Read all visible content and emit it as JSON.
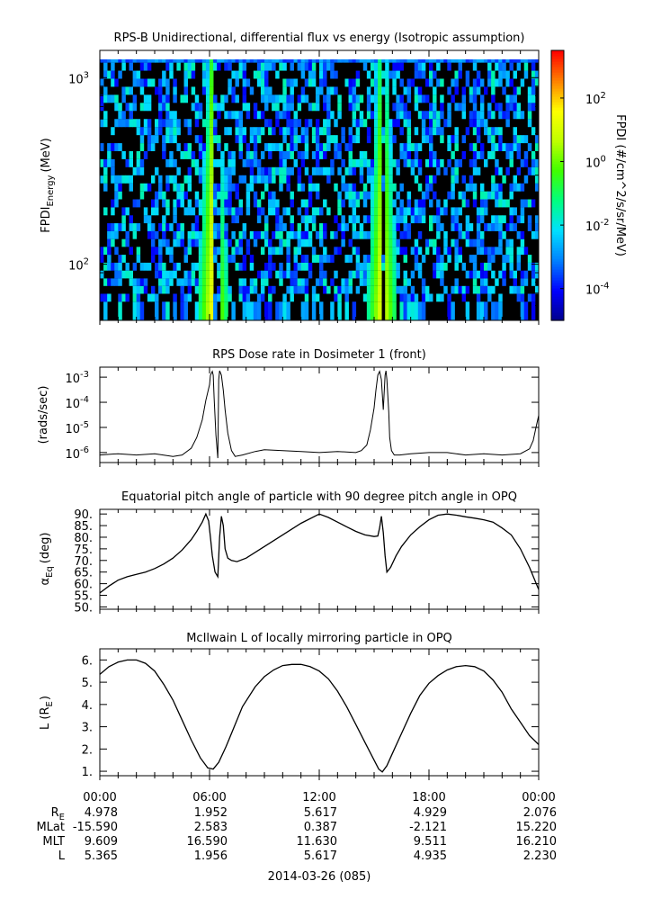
{
  "chart_data": [
    {
      "type": "heatmap",
      "title": "RPS-B  Unidirectional, differential flux vs energy (Isotropic assumption)",
      "ylabel": "FPDI",
      "ylabel_sub": "Energy",
      "ylabel_unit": "(MeV)",
      "yscale": "log",
      "ylim": [
        50,
        1400
      ],
      "yticks": [
        {
          "base": "10",
          "exp": "2",
          "value": 100
        },
        {
          "base": "10",
          "exp": "3",
          "value": 1000
        }
      ],
      "energy_bins_mev": [
        60,
        66,
        73,
        80,
        88,
        97,
        107,
        118,
        130,
        143,
        158,
        174,
        192,
        212,
        234,
        258,
        285,
        315,
        348,
        384,
        424,
        468,
        517,
        571,
        631,
        697,
        770,
        850,
        939,
        1037,
        1145,
        1265
      ],
      "flux_peaks": [
        {
          "center_hour": 6.2,
          "peak_log_flux": 1.6,
          "width_low_energy_h": 0.85,
          "width_high_energy_h": 0.3,
          "gap_hours": [
            6.12,
            6.55
          ]
        },
        {
          "center_hour": 15.45,
          "peak_log_flux": 1.5,
          "width_low_energy_h": 0.85,
          "width_high_energy_h": 0.3,
          "gap_hours": [
            15.33,
            15.6
          ]
        }
      ],
      "background_log_flux": [
        -4.2,
        -1.5
      ],
      "colorbar": {
        "label": "FPDI (#/cm^2/s/sr/MeV)",
        "log_range": [
          -5,
          3.5
        ],
        "ticks": [
          {
            "base": "10",
            "exp": "2",
            "value": 2
          },
          {
            "base": "10",
            "exp": "0",
            "value": 0
          },
          {
            "base": "10",
            "exp": "-2",
            "value": -2
          },
          {
            "base": "10",
            "exp": "-4",
            "value": -4
          }
        ],
        "colors": [
          "#00008b",
          "#0000ff",
          "#0080ff",
          "#00e0ff",
          "#00ff80",
          "#40ff00",
          "#c0ff00",
          "#ffff00",
          "#ff8000",
          "#ff0000"
        ]
      }
    },
    {
      "type": "line",
      "title": "RPS  Dose rate in Dosimeter 1 (front)",
      "ylabel": "(rads/sec)",
      "yscale": "log",
      "ylim": [
        4e-07,
        0.0025
      ],
      "yticks": [
        {
          "base": "10",
          "exp": "-3",
          "value": 0.001
        },
        {
          "base": "10",
          "exp": "-4",
          "value": 0.0001
        },
        {
          "base": "10",
          "exp": "-5",
          "value": 1e-05
        },
        {
          "base": "10",
          "exp": "-6",
          "value": 1e-06
        }
      ],
      "x_hours": [
        0,
        1,
        2,
        3,
        4,
        4.5,
        5.0,
        5.3,
        5.6,
        5.8,
        6.0,
        6.05,
        6.15,
        6.2,
        6.25,
        6.35,
        6.45,
        6.5,
        6.55,
        6.65,
        6.75,
        6.85,
        7.0,
        7.2,
        7.4,
        7.8,
        8.5,
        9,
        10,
        11,
        12,
        13,
        14,
        14.3,
        14.6,
        14.8,
        15.0,
        15.1,
        15.2,
        15.3,
        15.4,
        15.5,
        15.6,
        15.65,
        15.7,
        15.8,
        15.85,
        15.95,
        16.1,
        16.4,
        17,
        18,
        19,
        20,
        21,
        22,
        23,
        23.5,
        23.7,
        23.85,
        24
      ],
      "values": [
        8e-07,
        9e-07,
        8e-07,
        9e-07,
        7e-07,
        8e-07,
        1.5e-06,
        4e-06,
        2e-05,
        0.00012,
        0.0005,
        0.0012,
        0.0017,
        0.0012,
        0.00015,
        5e-06,
        6e-07,
        0.0008,
        0.0018,
        0.0012,
        0.0003,
        5e-05,
        6e-06,
        1.2e-06,
        7e-07,
        8e-07,
        1.1e-06,
        1.3e-06,
        1.2e-06,
        1.1e-06,
        1e-06,
        1.1e-06,
        1e-06,
        1.2e-06,
        2e-06,
        8e-06,
        6e-05,
        0.0003,
        0.0012,
        0.0017,
        0.0008,
        5e-05,
        0.0012,
        0.0018,
        0.0008,
        4e-05,
        4e-06,
        1.2e-06,
        8e-07,
        8e-07,
        9e-07,
        1e-06,
        1e-06,
        8e-07,
        9e-07,
        8e-07,
        9e-07,
        1.4e-06,
        3e-06,
        1e-05,
        3e-05
      ]
    },
    {
      "type": "line",
      "title": "Equatorial pitch angle of particle with 90 degree pitch angle in OPQ",
      "ylabel": "α",
      "ylabel_sub": "Eq",
      "ylabel_unit": "(deg)",
      "ylim": [
        49,
        92
      ],
      "yticks": [
        "50.",
        "55.",
        "60.",
        "65.",
        "70.",
        "75.",
        "80.",
        "85.",
        "90."
      ],
      "ytick_values": [
        50,
        55,
        60,
        65,
        70,
        75,
        80,
        85,
        90
      ],
      "x_hours": [
        0,
        0.5,
        1,
        1.5,
        2,
        2.5,
        3,
        3.5,
        4,
        4.5,
        5,
        5.3,
        5.6,
        5.8,
        5.95,
        6.05,
        6.15,
        6.3,
        6.45,
        6.55,
        6.65,
        6.75,
        6.85,
        7.0,
        7.2,
        7.5,
        8,
        9,
        10,
        11,
        12,
        12.5,
        13,
        13.5,
        14,
        14.5,
        15,
        15.2,
        15.3,
        15.4,
        15.5,
        15.6,
        15.7,
        15.9,
        16.2,
        16.5,
        17,
        17.5,
        18,
        18.5,
        19,
        19.5,
        20,
        20.5,
        21,
        21.5,
        22,
        22.5,
        23,
        23.5,
        24
      ],
      "values": [
        56,
        59,
        61.5,
        63,
        64,
        65,
        66.5,
        68.5,
        71,
        74.5,
        79,
        82.5,
        86.5,
        90,
        87,
        80,
        72,
        65,
        63,
        80,
        89,
        85,
        75,
        71,
        70,
        69.5,
        71,
        76,
        81,
        86,
        90,
        88.5,
        86.5,
        84.5,
        82.5,
        81,
        80.3,
        80.5,
        84,
        89,
        82,
        72,
        65,
        67,
        72,
        76,
        81,
        84.5,
        87.5,
        89.5,
        90,
        89.5,
        88.8,
        88.2,
        87.5,
        86.5,
        84,
        81,
        75,
        67,
        57.5
      ]
    },
    {
      "type": "line",
      "title": "McIlwain L of locally mirroring particle in OPQ",
      "ylabel": "L (R",
      "ylabel_sub": "E",
      "ylabel_unit": ")",
      "ylim": [
        0.8,
        6.5
      ],
      "yticks": [
        "1.",
        "2.",
        "3.",
        "4.",
        "5.",
        "6."
      ],
      "ytick_values": [
        1,
        2,
        3,
        4,
        5,
        6
      ],
      "x_hours": [
        0,
        0.5,
        1,
        1.5,
        2,
        2.5,
        3,
        3.5,
        4,
        4.5,
        5,
        5.5,
        5.9,
        6.2,
        6.5,
        6.9,
        7.3,
        7.8,
        8.5,
        9,
        9.5,
        10,
        10.5,
        11,
        11.5,
        12,
        12.5,
        13,
        13.5,
        14,
        14.5,
        15,
        15.25,
        15.45,
        15.7,
        16,
        16.5,
        17,
        17.5,
        18,
        18.5,
        19,
        19.5,
        20,
        20.5,
        21,
        21.5,
        22,
        22.5,
        23,
        23.5,
        24
      ],
      "values": [
        5.35,
        5.7,
        5.9,
        6.0,
        6.0,
        5.85,
        5.5,
        4.9,
        4.2,
        3.3,
        2.4,
        1.6,
        1.15,
        1.1,
        1.4,
        2.1,
        2.9,
        3.9,
        4.8,
        5.25,
        5.55,
        5.75,
        5.8,
        5.8,
        5.7,
        5.5,
        5.15,
        4.6,
        3.9,
        3.1,
        2.3,
        1.5,
        1.1,
        0.97,
        1.25,
        1.8,
        2.7,
        3.6,
        4.4,
        4.95,
        5.3,
        5.55,
        5.7,
        5.75,
        5.7,
        5.5,
        5.1,
        4.55,
        3.8,
        3.2,
        2.6,
        2.2
      ]
    }
  ],
  "xaxis": {
    "range_hours": [
      0,
      24
    ],
    "major_labels": [
      "00:00",
      "06:00",
      "12:00",
      "18:00",
      "00:00"
    ],
    "major_hours": [
      0,
      6,
      12,
      18,
      24
    ],
    "date_label": "2014-03-26 (085)",
    "ephemeris_rows": [
      {
        "label": "R",
        "label_sub": "E",
        "values": [
          "4.978",
          "1.952",
          "5.617",
          "4.929",
          "2.076"
        ]
      },
      {
        "label": "MLat",
        "label_sub": "",
        "values": [
          "-15.590",
          "2.583",
          "0.387",
          "-2.121",
          "15.220"
        ]
      },
      {
        "label": "MLT",
        "label_sub": "",
        "values": [
          "9.609",
          "16.590",
          "11.630",
          "9.511",
          "16.210"
        ]
      },
      {
        "label": "L",
        "label_sub": "",
        "values": [
          "5.365",
          "1.956",
          "5.617",
          "4.935",
          "2.230"
        ]
      }
    ]
  }
}
